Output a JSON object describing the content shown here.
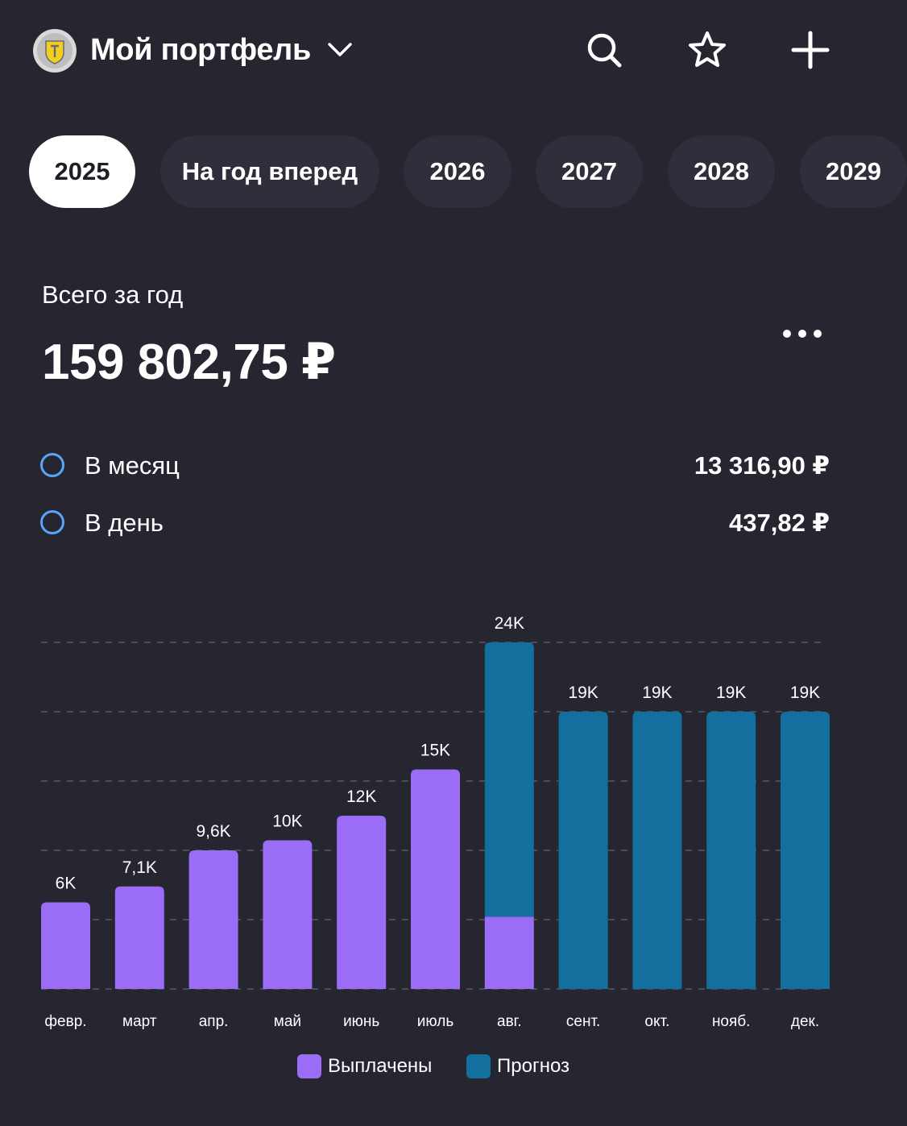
{
  "header": {
    "title": "Мой портфель",
    "icons": [
      "bank-logo-icon",
      "chevron-down-icon",
      "search-icon",
      "star-icon",
      "plus-icon"
    ]
  },
  "tabs": [
    {
      "label": "2025",
      "active": true
    },
    {
      "label": "На год вперед",
      "active": false
    },
    {
      "label": "2026",
      "active": false
    },
    {
      "label": "2027",
      "active": false
    },
    {
      "label": "2028",
      "active": false
    },
    {
      "label": "2029",
      "active": false
    }
  ],
  "summary": {
    "total_label": "Всего за год",
    "total_value": "159 802,75 ₽",
    "rows": [
      {
        "label": "В месяц",
        "value": "13 316,90 ₽"
      },
      {
        "label": "В день",
        "value": "437,82 ₽"
      }
    ]
  },
  "colors": {
    "background": "#252630",
    "paid": "#9b6cf6",
    "forecast": "#13709e",
    "ring": "#5aa5f5"
  },
  "chart_data": {
    "type": "bar",
    "stacked": true,
    "categories": [
      "февр.",
      "март",
      "апр.",
      "май",
      "июнь",
      "июль",
      "авг.",
      "сент.",
      "окт.",
      "нояб.",
      "дек."
    ],
    "value_labels": [
      "6K",
      "7,1K",
      "9,6K",
      "10K",
      "12K",
      "15K",
      "24K",
      "19K",
      "19K",
      "19K",
      "19K"
    ],
    "series": [
      {
        "name": "Выплачены",
        "color": "#9b6cf6",
        "values": [
          6000,
          7100,
          9600,
          10300,
          12000,
          15200,
          5000,
          0,
          0,
          0,
          0
        ]
      },
      {
        "name": "Прогноз",
        "color": "#13709e",
        "values": [
          0,
          0,
          0,
          0,
          0,
          0,
          19000,
          19200,
          19200,
          19200,
          19200
        ]
      }
    ],
    "ylim": [
      0,
      24000
    ],
    "grid": "dashed-horizontal",
    "legend": "bottom-center"
  }
}
